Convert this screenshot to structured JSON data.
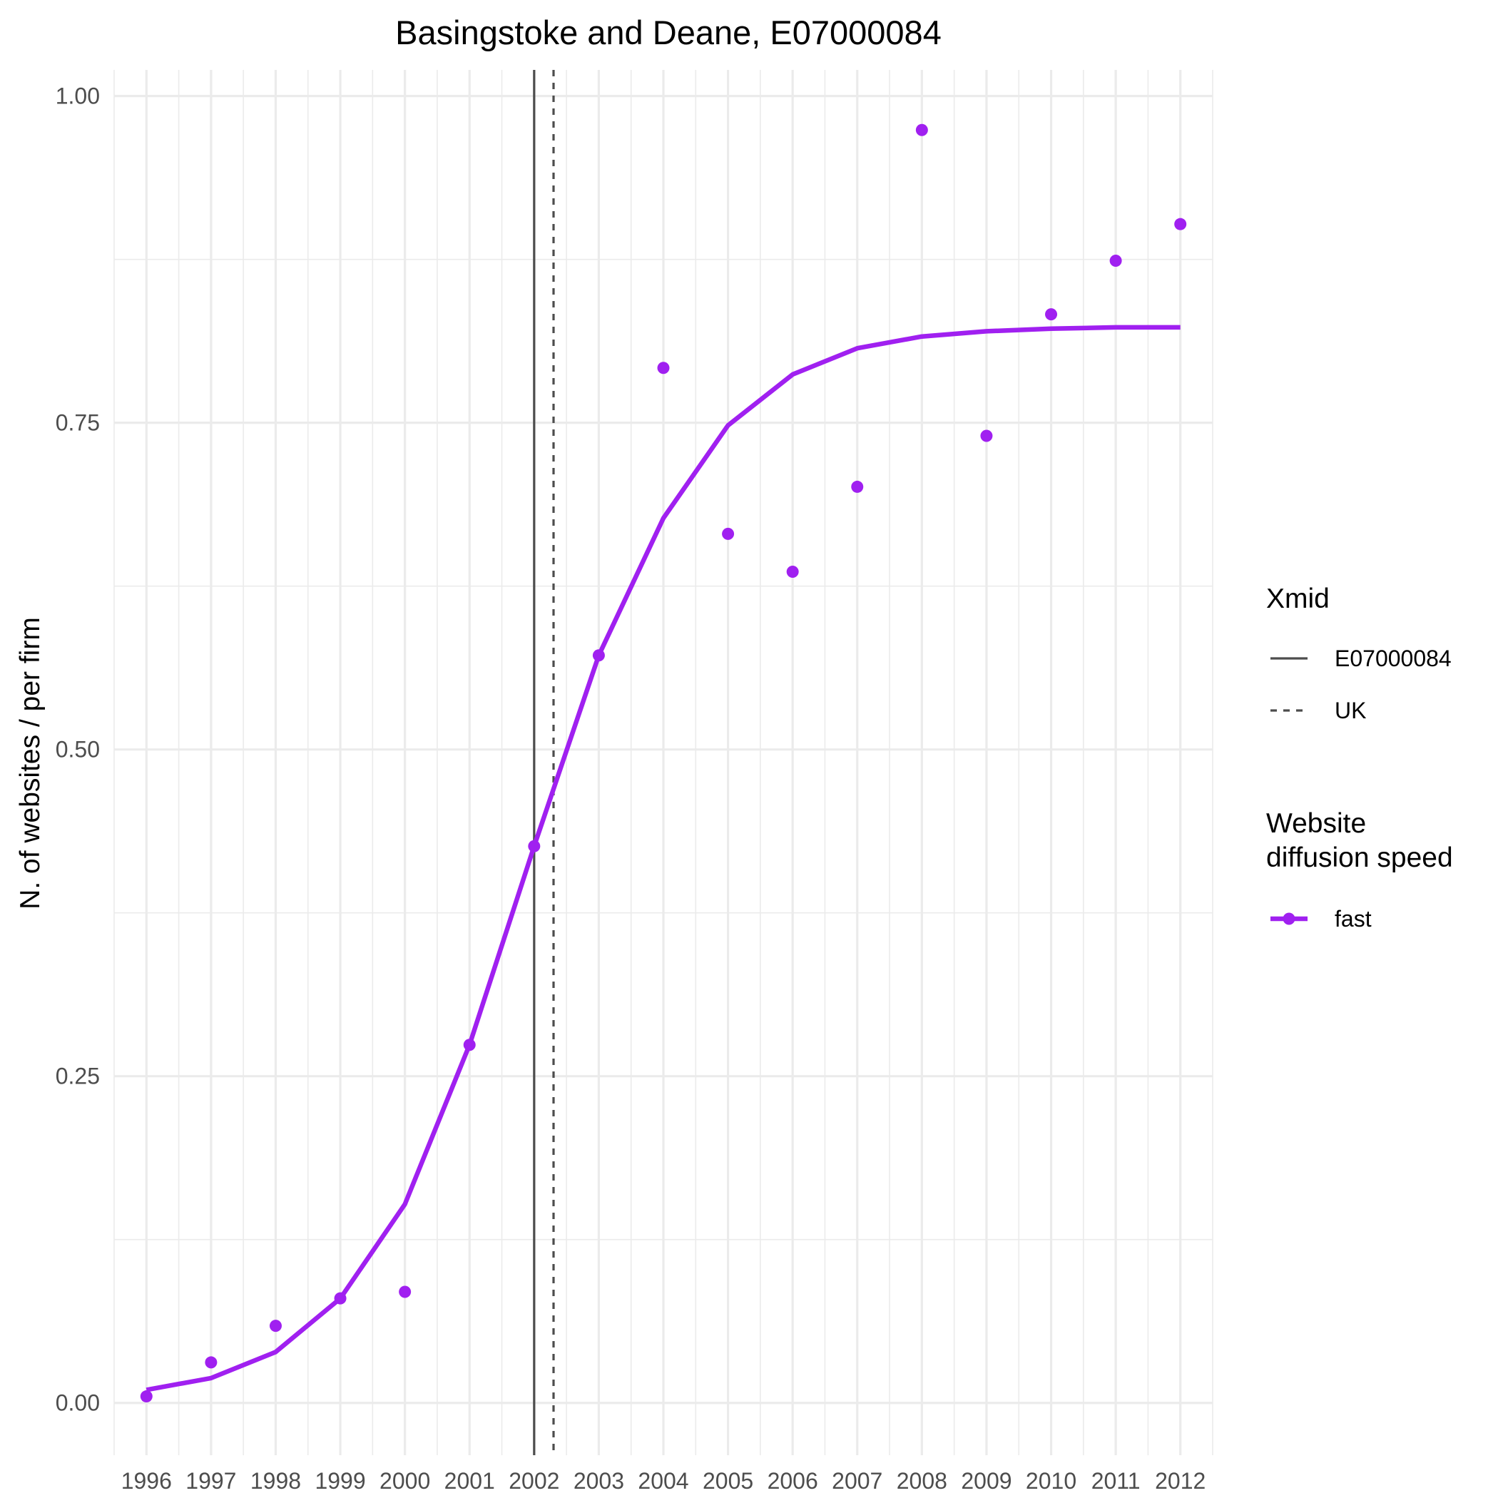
{
  "chart_data": {
    "type": "line",
    "title": "Basingstoke and Deane, E07000084",
    "xlabel": "",
    "ylabel": "N. of websites / per firm",
    "x": [
      1996,
      1997,
      1998,
      1999,
      2000,
      2001,
      2002,
      2003,
      2004,
      2005,
      2006,
      2007,
      2008,
      2009,
      2010,
      2011,
      2012
    ],
    "xlim": [
      1995.5,
      2012.5
    ],
    "ylim": [
      -0.04,
      1.02
    ],
    "y_ticks": [
      0.0,
      0.25,
      0.5,
      0.75,
      1.0
    ],
    "y_tick_labels": [
      "0.00",
      "0.25",
      "0.50",
      "0.75",
      "1.00"
    ],
    "x_tick_labels": [
      "1996",
      "1997",
      "1998",
      "1999",
      "2000",
      "2001",
      "2002",
      "2003",
      "2004",
      "2005",
      "2006",
      "2007",
      "2008",
      "2009",
      "2010",
      "2011",
      "2012"
    ],
    "grid": true,
    "series": [
      {
        "name": "fast",
        "kind": "fitted-line",
        "color": "#a020f0",
        "values": [
          0.01,
          0.019,
          0.039,
          0.08,
          0.152,
          0.274,
          0.426,
          0.572,
          0.677,
          0.748,
          0.787,
          0.807,
          0.816,
          0.82,
          0.822,
          0.823,
          0.823
        ]
      },
      {
        "name": "fast",
        "kind": "observed-points",
        "color": "#a020f0",
        "values": [
          0.005,
          0.031,
          0.059,
          0.08,
          0.085,
          0.274,
          0.426,
          0.572,
          0.792,
          0.665,
          0.636,
          0.701,
          0.974,
          0.74,
          0.833,
          0.874,
          0.902
        ]
      }
    ],
    "vlines": [
      {
        "name": "E07000084",
        "x": 2002.0,
        "style": "solid",
        "color": "#4d4d4d"
      },
      {
        "name": "UK",
        "x": 2002.3,
        "style": "dashed",
        "color": "#4d4d4d"
      }
    ],
    "legend": {
      "position": "right",
      "groups": [
        {
          "title": [
            "Xmid"
          ],
          "entries": [
            {
              "label": "E07000084",
              "style": "solid"
            },
            {
              "label": "UK",
              "style": "dashed"
            }
          ]
        },
        {
          "title": [
            "Website",
            "diffusion speed"
          ],
          "entries": [
            {
              "label": "fast",
              "style": "line-point"
            }
          ]
        }
      ]
    }
  }
}
